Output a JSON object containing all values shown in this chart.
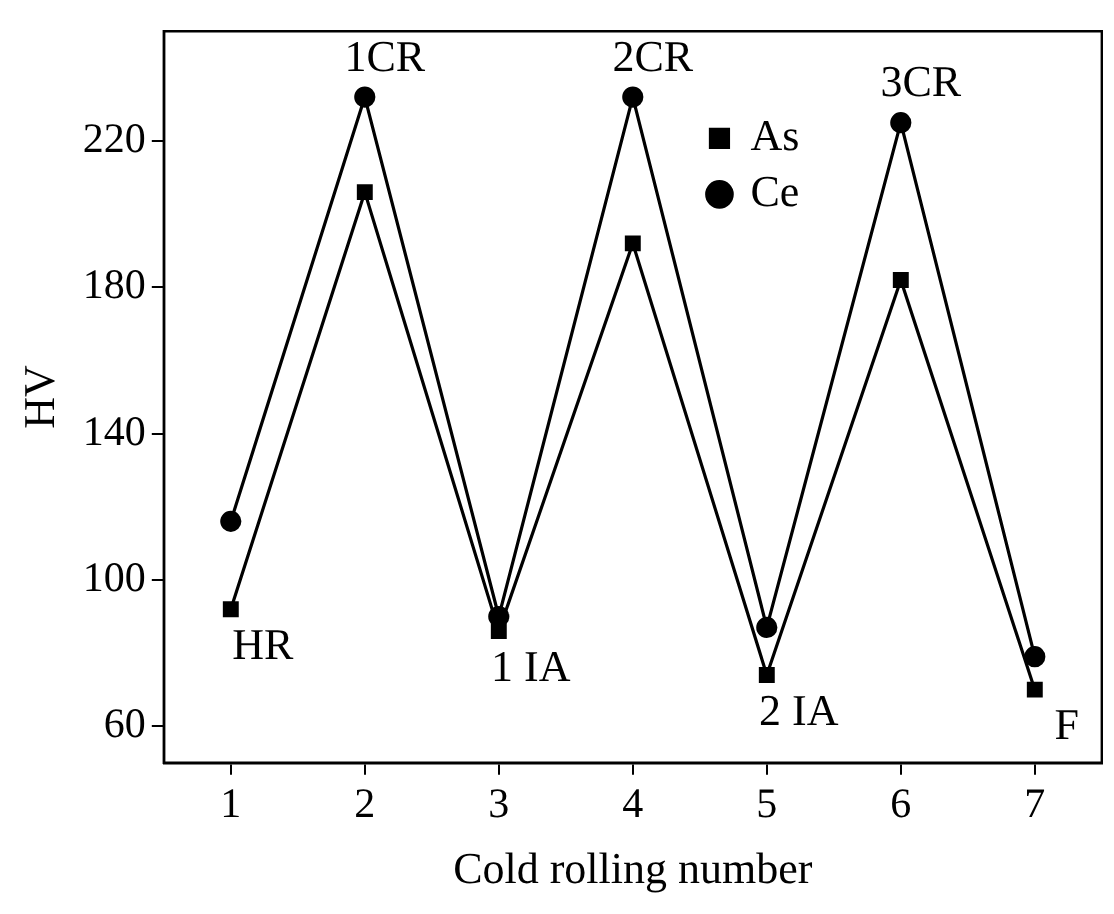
{
  "chart_data": {
    "type": "line",
    "xlabel": "Cold rolling number",
    "ylabel": "HV",
    "x": [
      1,
      2,
      3,
      4,
      5,
      6,
      7
    ],
    "series": [
      {
        "name": "As",
        "color": "#000000",
        "marker": "square",
        "values": [
          92,
          206,
          86,
          192,
          74,
          182,
          70
        ]
      },
      {
        "name": "Ce",
        "color": "#000000",
        "marker": "circle",
        "values": [
          116,
          232,
          90,
          232,
          87,
          225,
          79
        ]
      }
    ],
    "xlim": [
      0.5,
      7.5
    ],
    "xticks": [
      1,
      2,
      3,
      4,
      5,
      6,
      7
    ],
    "ylim": [
      50,
      250
    ],
    "yticks": [
      60,
      100,
      140,
      180,
      220
    ],
    "grid": false,
    "legend": "top right",
    "line_style": "solid",
    "annotations": [
      "HR",
      "1CR",
      "1 IA",
      "2CR",
      "2 IA",
      "3CR",
      "F"
    ]
  }
}
